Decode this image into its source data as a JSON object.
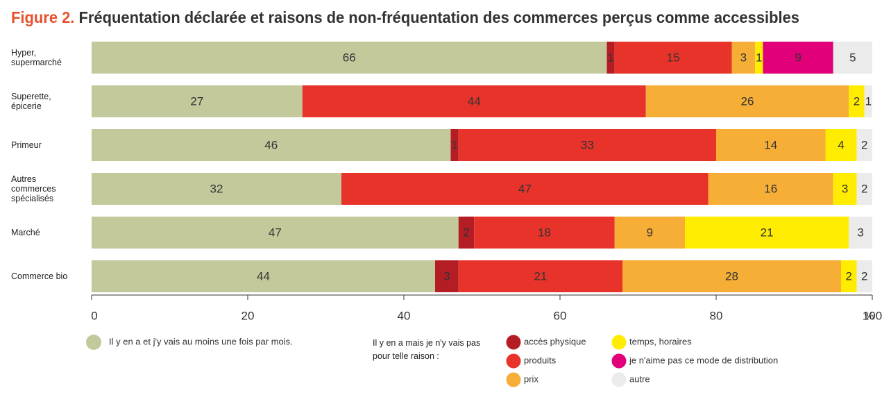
{
  "chart_data": {
    "type": "stacked-bar-horizontal",
    "figure_label": "Figure 2.",
    "title": "Fréquentation déclarée et raisons de non-fréquentation des commerces perçus comme accessibles",
    "categories": [
      "Hyper,\nsupermarché",
      "Superette,\népicerie",
      "Primeur",
      "Autres\ncommerces\nspécialisés",
      "Marché",
      "Commerce bio"
    ],
    "series": [
      {
        "name": "Il y en a et j'y vais au moins une fois par mois.",
        "color": "#c3c99b",
        "values": [
          66,
          27,
          46,
          32,
          47,
          44
        ]
      },
      {
        "name": "accès physique",
        "color": "#b41d24",
        "values": [
          1,
          0,
          1,
          0,
          2,
          3
        ]
      },
      {
        "name": "produits",
        "color": "#e7332a",
        "values": [
          15,
          44,
          33,
          47,
          18,
          21
        ]
      },
      {
        "name": "prix",
        "color": "#f6ae37",
        "values": [
          3,
          26,
          14,
          16,
          9,
          28
        ]
      },
      {
        "name": "temps, horaires",
        "color": "#ffec00",
        "values": [
          1,
          2,
          4,
          3,
          21,
          2
        ]
      },
      {
        "name": "je n'aime pas ce mode de distribution",
        "color": "#e2007a",
        "values": [
          9,
          0,
          0,
          0,
          0,
          0
        ]
      },
      {
        "name": "autre",
        "color": "#ebebeb",
        "values": [
          5,
          1,
          2,
          2,
          3,
          2
        ]
      }
    ],
    "legend_subtitle": "Il y en a mais je n'y vais pas\npour telle raison :",
    "xlim": [
      0,
      100
    ],
    "xticks": [
      0,
      20,
      40,
      60,
      80,
      100
    ],
    "x_unit": "%"
  }
}
